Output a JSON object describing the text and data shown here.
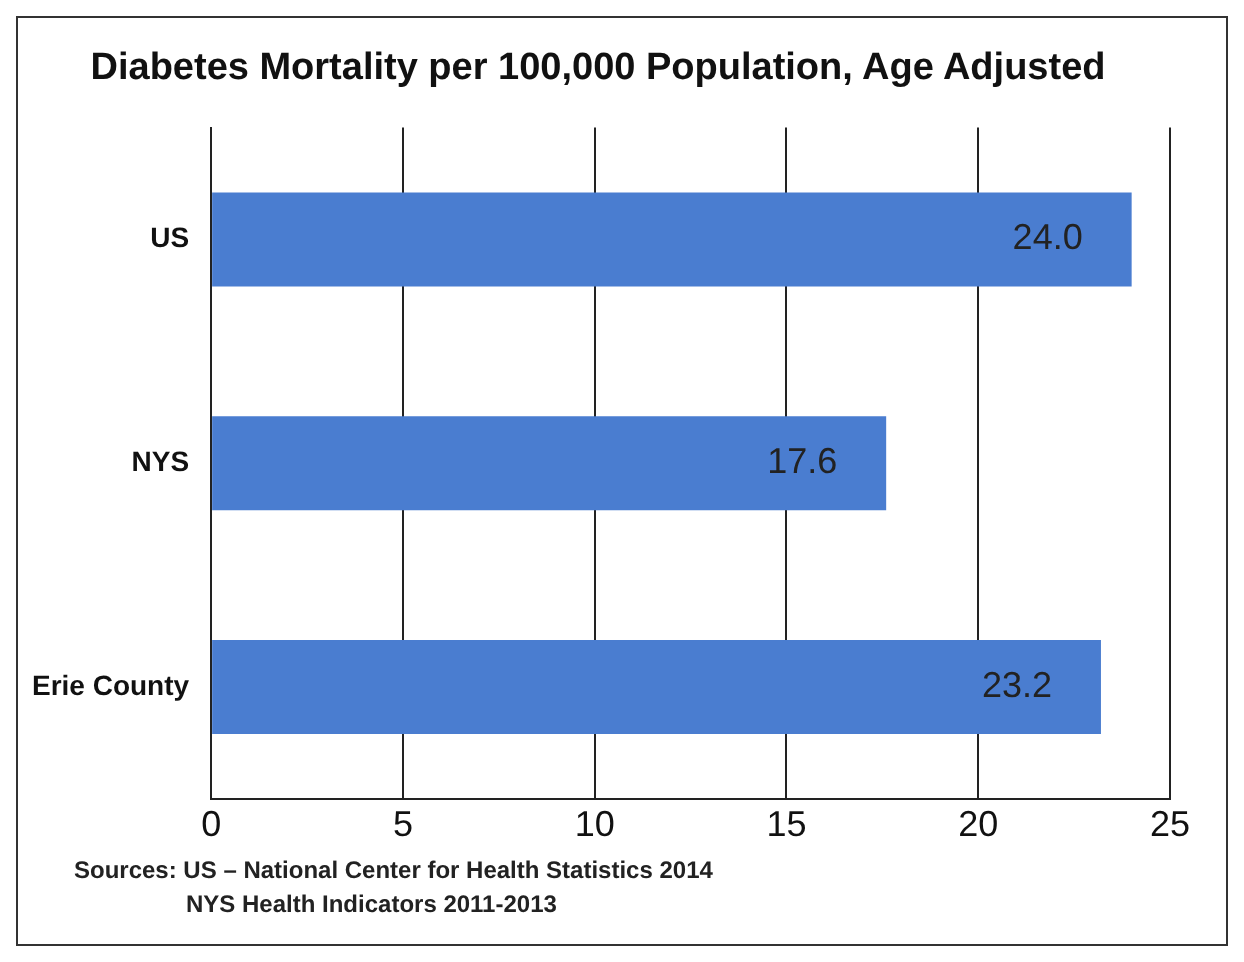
{
  "chart_data": {
    "type": "bar",
    "orientation": "horizontal",
    "title": "Diabetes Mortality per 100,000 Population, Age Adjusted",
    "categories": [
      "US",
      "NYS",
      "Erie County"
    ],
    "values": [
      24.0,
      17.6,
      23.2
    ],
    "value_labels": [
      "24.0",
      "17.6",
      "23.2"
    ],
    "color": "#4a7dd0",
    "xlim": [
      0,
      25
    ],
    "xticks": [
      0,
      5,
      10,
      15,
      20,
      25
    ],
    "grid": "x",
    "annotations": [
      "Sources: US – National Center for Health Statistics 2014",
      "NYS Health Indicators 2011-2013"
    ]
  }
}
